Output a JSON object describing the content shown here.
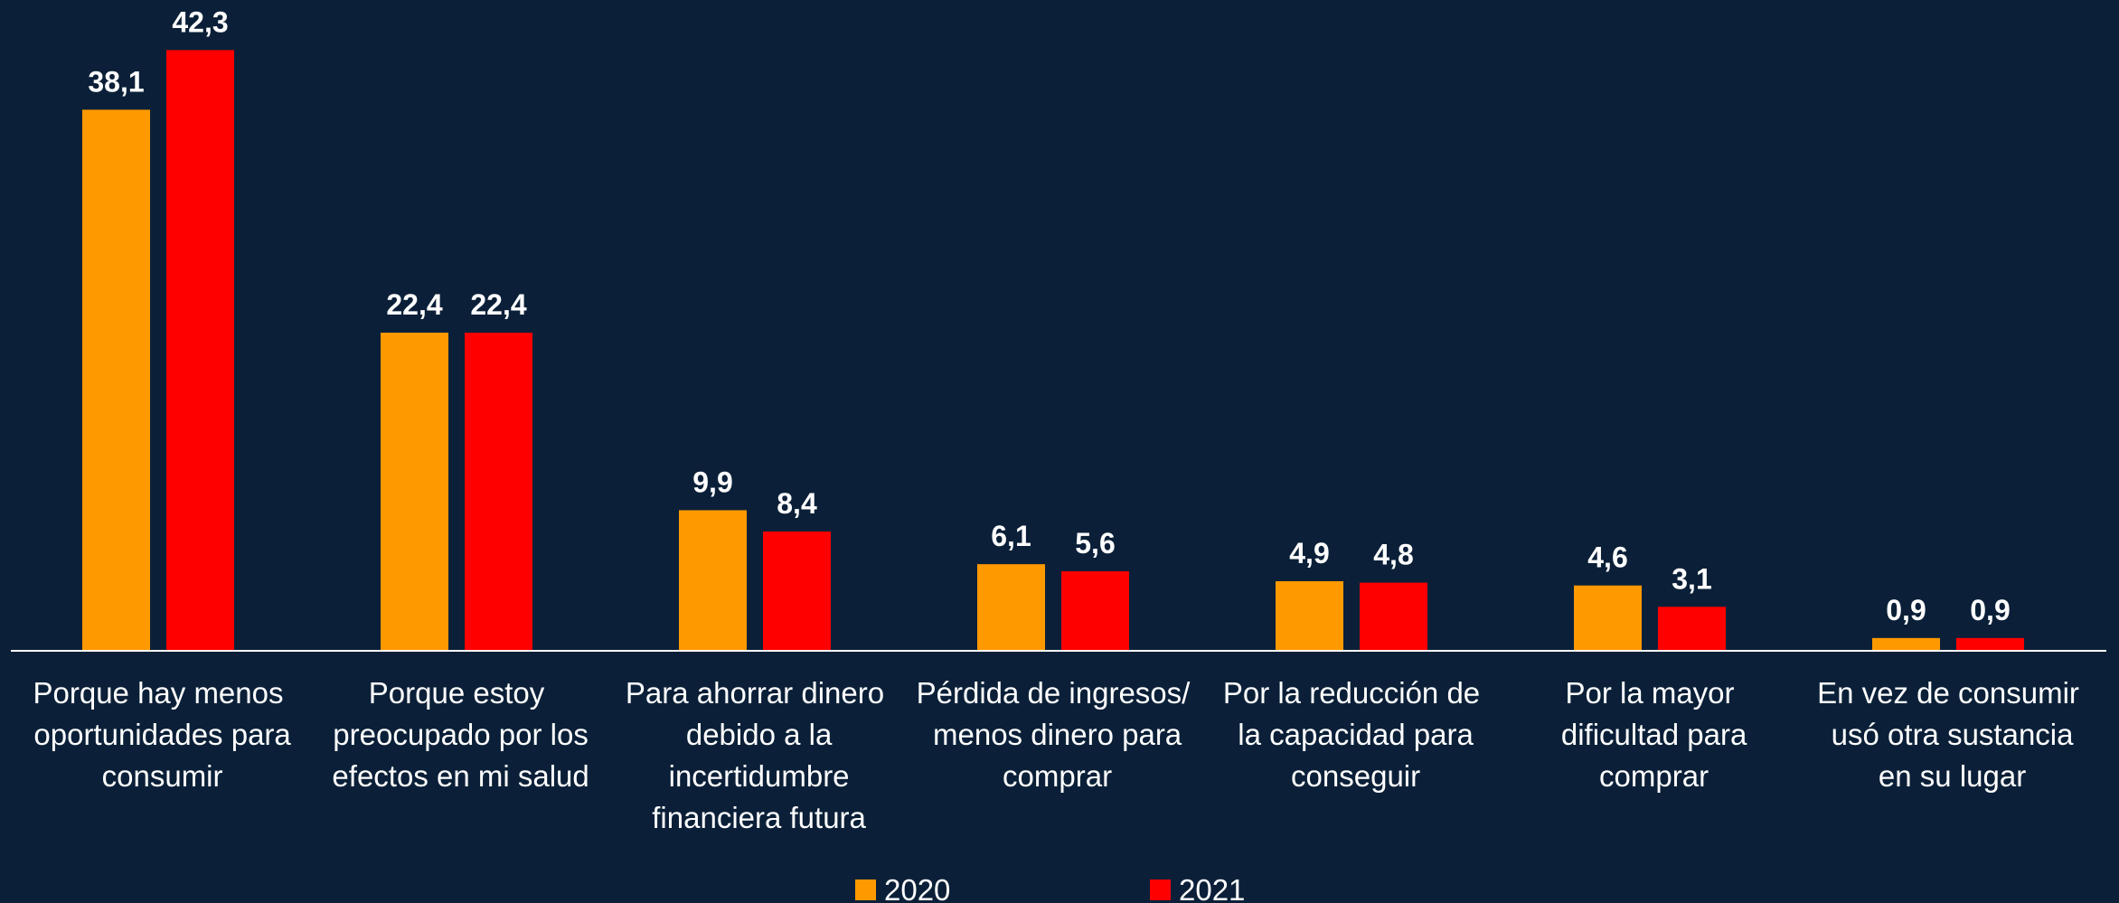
{
  "chart_data": {
    "type": "bar",
    "categories": [
      "Porque hay menos oportunidades para consumir",
      "Porque estoy preocupado por los efectos en mi salud",
      "Para ahorrar dinero debido a la incertidumbre financiera futura",
      "Pérdida de ingresos/ menos dinero para comprar",
      "Por la reducción de la capacidad para conseguir",
      "Por la mayor dificultad para comprar",
      "En vez de consumir usó otra sustancia en su lugar"
    ],
    "series": [
      {
        "name": "2020",
        "color": "#ff9900",
        "values": [
          38.1,
          22.4,
          9.9,
          6.1,
          4.9,
          4.6,
          0.9
        ],
        "value_labels": [
          "38,1",
          "22,4",
          "9,9",
          "6,1",
          "4,9",
          "4,6",
          "0,9"
        ]
      },
      {
        "name": "2021",
        "color": "#ff0000",
        "values": [
          42.3,
          22.4,
          8.4,
          5.6,
          4.8,
          3.1,
          0.9
        ],
        "value_labels": [
          "42,3",
          "22,4",
          "8,4",
          "5,6",
          "4,8",
          "3,1",
          "0,9"
        ]
      }
    ],
    "ylim": [
      0,
      45
    ],
    "legend": "bottom"
  }
}
